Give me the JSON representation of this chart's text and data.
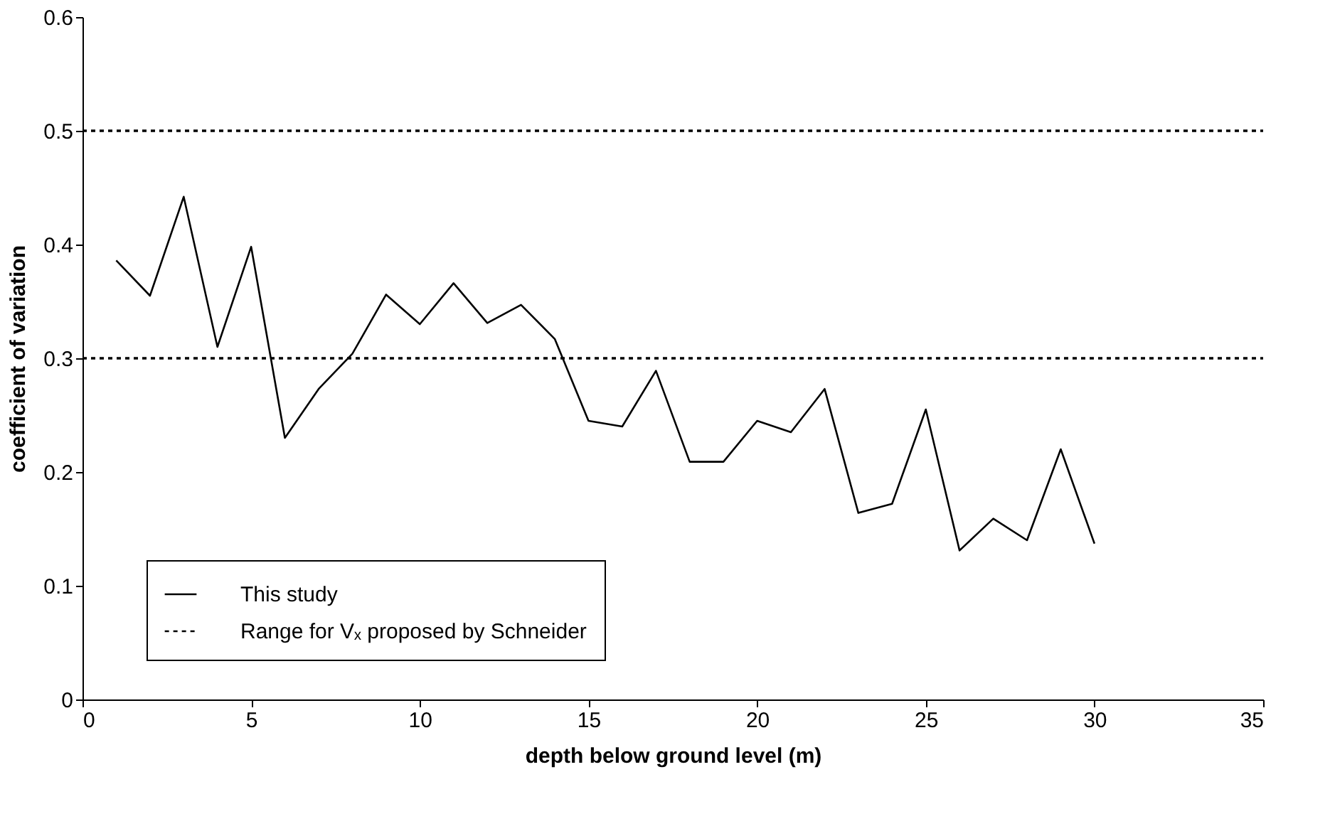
{
  "chart_data": {
    "type": "line",
    "xlabel": "depth below ground level (m)",
    "ylabel": "coefficient of variation",
    "x": [
      1,
      2,
      3,
      4,
      5,
      6,
      7,
      8,
      9,
      10,
      11,
      12,
      13,
      14,
      15,
      16,
      17,
      18,
      19,
      20,
      21,
      22,
      23,
      24,
      25,
      26,
      27,
      28,
      29,
      30
    ],
    "series": [
      {
        "name": "This study",
        "color": "#000000",
        "line_style": "solid",
        "values": [
          0.386,
          0.355,
          0.442,
          0.31,
          0.398,
          0.23,
          0.273,
          0.304,
          0.356,
          0.33,
          0.366,
          0.331,
          0.347,
          0.317,
          0.245,
          0.24,
          0.289,
          0.209,
          0.209,
          0.245,
          0.235,
          0.273,
          0.164,
          0.172,
          0.255,
          0.131,
          0.159,
          0.14,
          0.22,
          0.137
        ]
      }
    ],
    "ref_lines": [
      {
        "axis": "y",
        "value": 0.5,
        "label": "Range for Vₓ proposed by Schneider",
        "color": "#000000",
        "line_style": "dotted"
      },
      {
        "axis": "y",
        "value": 0.3,
        "color": "#000000",
        "line_style": "dotted"
      }
    ],
    "xlim": [
      0,
      35
    ],
    "xticks": [
      0,
      5,
      10,
      15,
      20,
      25,
      30,
      35
    ],
    "ylim": [
      0,
      0.6
    ],
    "yticks": [
      0,
      0.1,
      0.2,
      0.3,
      0.4,
      0.5,
      0.6
    ],
    "grid": false,
    "legend": "bottom left",
    "marker": "none"
  }
}
